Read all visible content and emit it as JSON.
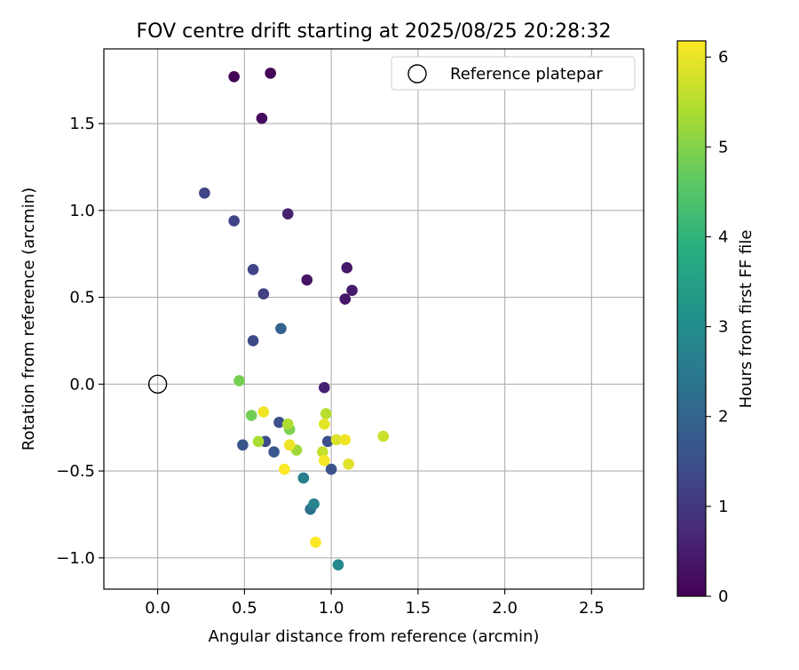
{
  "chart_data": {
    "type": "scatter",
    "title": "FOV centre drift starting at 2025/08/25 20:28:32",
    "xlabel": "Angular distance from reference (arcmin)",
    "ylabel": "Rotation from reference (arcmin)",
    "xlim": [
      -0.31,
      2.8
    ],
    "ylim": [
      -1.18,
      1.93
    ],
    "x_ticks": [
      0.0,
      0.5,
      1.0,
      1.5,
      2.0,
      2.5
    ],
    "x_tick_labels": [
      "0.0",
      "0.5",
      "1.0",
      "1.5",
      "2.0",
      "2.5"
    ],
    "y_ticks": [
      -1.0,
      -0.5,
      0.0,
      0.5,
      1.0,
      1.5
    ],
    "y_tick_labels": [
      "−1.0",
      "−0.5",
      "0.0",
      "0.5",
      "1.0",
      "1.5"
    ],
    "grid": true,
    "legend": {
      "position": "top-right",
      "entries": [
        "Reference platepar"
      ]
    },
    "reference_point": {
      "name": "Reference platepar",
      "x": 0.0,
      "y": 0.0
    },
    "colorbar": {
      "label": "Hours from first FF file",
      "colormap": "viridis",
      "range": [
        0,
        6.18
      ],
      "ticks": [
        0,
        1,
        2,
        3,
        4,
        5,
        6
      ],
      "tick_labels": [
        "0",
        "1",
        "2",
        "3",
        "4",
        "5",
        "6"
      ]
    },
    "points": [
      {
        "x": 0.44,
        "y": 1.77,
        "t": 0.05
      },
      {
        "x": 0.65,
        "y": 1.79,
        "t": 0.1
      },
      {
        "x": 0.6,
        "y": 1.53,
        "t": 0.2
      },
      {
        "x": 0.75,
        "y": 0.98,
        "t": 0.55
      },
      {
        "x": 1.09,
        "y": 0.67,
        "t": 0.4
      },
      {
        "x": 0.86,
        "y": 0.6,
        "t": 0.35
      },
      {
        "x": 1.12,
        "y": 0.54,
        "t": 0.45
      },
      {
        "x": 1.08,
        "y": 0.49,
        "t": 0.4
      },
      {
        "x": 0.96,
        "y": -0.02,
        "t": 0.6
      },
      {
        "x": 0.27,
        "y": 1.1,
        "t": 1.3
      },
      {
        "x": 0.44,
        "y": 0.94,
        "t": 1.3
      },
      {
        "x": 0.55,
        "y": 0.66,
        "t": 1.3
      },
      {
        "x": 0.61,
        "y": 0.52,
        "t": 1.2
      },
      {
        "x": 0.55,
        "y": 0.25,
        "t": 1.4
      },
      {
        "x": 0.71,
        "y": 0.32,
        "t": 1.95
      },
      {
        "x": 0.49,
        "y": -0.35,
        "t": 1.65
      },
      {
        "x": 0.62,
        "y": -0.33,
        "t": 1.45
      },
      {
        "x": 0.7,
        "y": -0.22,
        "t": 1.55
      },
      {
        "x": 0.67,
        "y": -0.39,
        "t": 1.7
      },
      {
        "x": 0.98,
        "y": -0.33,
        "t": 1.5
      },
      {
        "x": 1.0,
        "y": -0.49,
        "t": 1.6
      },
      {
        "x": 0.84,
        "y": -0.54,
        "t": 2.7
      },
      {
        "x": 0.88,
        "y": -0.72,
        "t": 2.3
      },
      {
        "x": 0.9,
        "y": -0.69,
        "t": 2.75
      },
      {
        "x": 1.04,
        "y": -1.04,
        "t": 2.9
      },
      {
        "x": 0.47,
        "y": 0.02,
        "t": 4.9
      },
      {
        "x": 0.54,
        "y": -0.18,
        "t": 4.85
      },
      {
        "x": 0.76,
        "y": -0.26,
        "t": 4.95
      },
      {
        "x": 0.58,
        "y": -0.33,
        "t": 5.4
      },
      {
        "x": 0.8,
        "y": -0.38,
        "t": 5.3
      },
      {
        "x": 0.75,
        "y": -0.23,
        "t": 5.45
      },
      {
        "x": 0.61,
        "y": -0.16,
        "t": 6.05
      },
      {
        "x": 0.76,
        "y": -0.35,
        "t": 6.05
      },
      {
        "x": 0.73,
        "y": -0.49,
        "t": 6.15
      },
      {
        "x": 0.97,
        "y": -0.17,
        "t": 5.55
      },
      {
        "x": 0.96,
        "y": -0.23,
        "t": 5.95
      },
      {
        "x": 0.95,
        "y": -0.39,
        "t": 5.65
      },
      {
        "x": 0.96,
        "y": -0.44,
        "t": 6.1
      },
      {
        "x": 1.03,
        "y": -0.32,
        "t": 5.85
      },
      {
        "x": 1.08,
        "y": -0.32,
        "t": 6.05
      },
      {
        "x": 1.1,
        "y": -0.46,
        "t": 5.9
      },
      {
        "x": 1.3,
        "y": -0.3,
        "t": 5.7
      },
      {
        "x": 0.91,
        "y": -0.91,
        "t": 6.15
      }
    ]
  }
}
